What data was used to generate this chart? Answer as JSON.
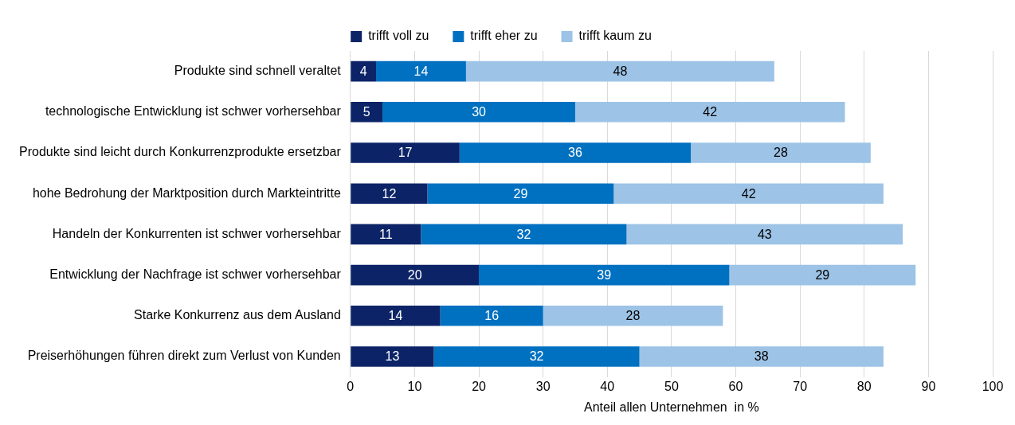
{
  "chart_data": {
    "type": "bar",
    "orientation": "horizontal",
    "stacked": true,
    "categories": [
      "Produkte sind schnell veraltet",
      "technologische Entwicklung ist schwer vorhersehbar",
      "Produkte sind leicht durch Konkurrenzprodukte ersetzbar",
      "hohe Bedrohung der Marktposition durch Markteintritte",
      "Handeln der Konkurrenten ist schwer vorhersehbar",
      "Entwicklung der Nachfrage ist schwer vorhersehbar",
      "Starke Konkurrenz aus dem Ausland",
      "Preiserhöhungen führen direkt zum Verlust von Kunden"
    ],
    "series": [
      {
        "name": "trifft voll zu",
        "color": "#0c2467",
        "values": [
          4,
          5,
          17,
          12,
          11,
          20,
          14,
          13
        ]
      },
      {
        "name": "trifft eher zu",
        "color": "#0070c0",
        "values": [
          14,
          30,
          36,
          29,
          32,
          39,
          16,
          32
        ]
      },
      {
        "name": "trifft kaum zu",
        "color": "#9dc3e6",
        "values": [
          48,
          42,
          28,
          42,
          43,
          29,
          28,
          38
        ]
      }
    ],
    "xlim": [
      0,
      100
    ],
    "xticks": [
      0,
      10,
      20,
      30,
      40,
      50,
      60,
      70,
      80,
      90,
      100
    ],
    "xlabel": "Anteil allen Unternehmen  in %",
    "grid": "x",
    "legend": "top",
    "data_labels": true
  }
}
